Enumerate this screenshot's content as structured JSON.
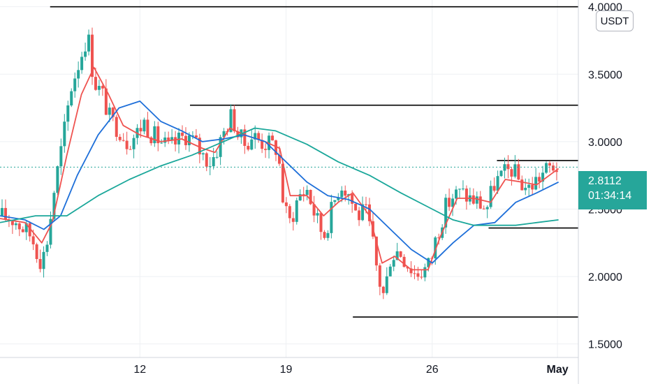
{
  "unit_label": "USDT",
  "current": {
    "price": "2.8112",
    "countdown": "01:34:14"
  },
  "colors": {
    "up": "#26a69a",
    "down": "#ef5350",
    "ma_fast": "#ef5350",
    "ma_mid": "#1e6fd9",
    "ma_slow": "#1aa79a",
    "grid": "#eef0f3",
    "level": "#000000"
  },
  "chart_data": {
    "type": "candlestick",
    "title": "",
    "ylim": [
      1.4,
      4.05
    ],
    "y_ticks": [
      "4.0000",
      "3.5000",
      "3.0000",
      "2.5000",
      "2.0000",
      "1.5000"
    ],
    "x_ticks": [
      {
        "label": "12",
        "day": 12,
        "bold": false
      },
      {
        "label": "19",
        "day": 19,
        "bold": false
      },
      {
        "label": "26",
        "day": 26,
        "bold": false
      },
      {
        "label": "May",
        "day": 32,
        "bold": true
      }
    ],
    "xlim_days": [
      5.3,
      33.0
    ],
    "horizontal_levels": [
      {
        "price": 4.0,
        "from_day": 7.7,
        "to_day": 33.0
      },
      {
        "price": 3.27,
        "from_day": 14.4,
        "to_day": 33.0
      },
      {
        "price": 2.86,
        "from_day": 29.1,
        "to_day": 33.0
      },
      {
        "price": 2.36,
        "from_day": 28.7,
        "to_day": 33.0
      },
      {
        "price": 1.7,
        "from_day": 22.2,
        "to_day": 33.0
      }
    ],
    "close_path": [
      [
        5.3,
        2.45
      ],
      [
        6.0,
        2.42
      ],
      [
        6.8,
        2.3
      ],
      [
        7.3,
        2.1
      ],
      [
        7.6,
        2.3
      ],
      [
        7.9,
        2.65
      ],
      [
        8.3,
        3.0
      ],
      [
        8.7,
        3.4
      ],
      [
        9.1,
        3.6
      ],
      [
        9.5,
        3.8
      ],
      [
        9.8,
        3.45
      ],
      [
        10.2,
        3.35
      ],
      [
        10.6,
        3.15
      ],
      [
        11.0,
        3.1
      ],
      [
        11.4,
        3.0
      ],
      [
        11.8,
        3.05
      ],
      [
        12.2,
        3.15
      ],
      [
        12.6,
        3.05
      ],
      [
        13.0,
        3.0
      ],
      [
        13.4,
        2.95
      ],
      [
        13.8,
        3.0
      ],
      [
        14.2,
        3.05
      ],
      [
        14.6,
        3.0
      ],
      [
        15.0,
        2.9
      ],
      [
        15.4,
        2.85
      ],
      [
        15.8,
        2.98
      ],
      [
        16.1,
        3.1
      ],
      [
        16.4,
        3.2
      ],
      [
        16.7,
        3.05
      ],
      [
        17.0,
        2.98
      ],
      [
        17.4,
        3.05
      ],
      [
        17.8,
        3.0
      ],
      [
        18.2,
        2.98
      ],
      [
        18.6,
        2.95
      ],
      [
        18.9,
        2.5
      ],
      [
        19.2,
        2.4
      ],
      [
        19.6,
        2.6
      ],
      [
        20.0,
        2.65
      ],
      [
        20.4,
        2.45
      ],
      [
        20.8,
        2.3
      ],
      [
        21.2,
        2.5
      ],
      [
        21.6,
        2.7
      ],
      [
        22.0,
        2.62
      ],
      [
        22.4,
        2.45
      ],
      [
        22.8,
        2.48
      ],
      [
        23.1,
        2.3
      ],
      [
        23.4,
        2.0
      ],
      [
        23.7,
        1.85
      ],
      [
        24.0,
        2.15
      ],
      [
        24.4,
        2.2
      ],
      [
        24.8,
        2.1
      ],
      [
        25.2,
        2.02
      ],
      [
        25.6,
        2.05
      ],
      [
        25.9,
        2.1
      ],
      [
        26.2,
        2.3
      ],
      [
        26.6,
        2.5
      ],
      [
        27.0,
        2.6
      ],
      [
        27.4,
        2.62
      ],
      [
        27.8,
        2.58
      ],
      [
        28.2,
        2.55
      ],
      [
        28.6,
        2.5
      ],
      [
        29.0,
        2.7
      ],
      [
        29.4,
        2.75
      ],
      [
        29.8,
        2.8
      ],
      [
        30.2,
        2.7
      ],
      [
        30.6,
        2.65
      ],
      [
        31.0,
        2.72
      ],
      [
        31.4,
        2.78
      ],
      [
        31.8,
        2.82
      ],
      [
        32.05,
        2.81
      ]
    ],
    "moving_averages": [
      {
        "key": "ma_fast",
        "points": [
          [
            5.3,
            2.43
          ],
          [
            6.5,
            2.4
          ],
          [
            7.3,
            2.25
          ],
          [
            7.8,
            2.4
          ],
          [
            8.5,
            2.9
          ],
          [
            9.2,
            3.35
          ],
          [
            9.8,
            3.55
          ],
          [
            10.5,
            3.35
          ],
          [
            11.2,
            3.12
          ],
          [
            12.0,
            3.05
          ],
          [
            13.0,
            3.0
          ],
          [
            14.0,
            3.02
          ],
          [
            15.0,
            2.95
          ],
          [
            15.6,
            2.92
          ],
          [
            16.3,
            3.1
          ],
          [
            17.0,
            3.05
          ],
          [
            18.0,
            3.0
          ],
          [
            18.7,
            2.95
          ],
          [
            19.2,
            2.6
          ],
          [
            20.0,
            2.6
          ],
          [
            20.8,
            2.45
          ],
          [
            21.5,
            2.55
          ],
          [
            22.2,
            2.62
          ],
          [
            23.0,
            2.45
          ],
          [
            23.6,
            2.1
          ],
          [
            24.2,
            2.15
          ],
          [
            25.0,
            2.05
          ],
          [
            25.8,
            2.05
          ],
          [
            26.4,
            2.3
          ],
          [
            27.2,
            2.58
          ],
          [
            28.0,
            2.58
          ],
          [
            28.8,
            2.55
          ],
          [
            29.5,
            2.72
          ],
          [
            30.3,
            2.7
          ],
          [
            31.0,
            2.68
          ],
          [
            31.7,
            2.76
          ],
          [
            32.05,
            2.8
          ]
        ]
      },
      {
        "key": "ma_mid",
        "points": [
          [
            5.3,
            2.45
          ],
          [
            6.5,
            2.42
          ],
          [
            7.4,
            2.35
          ],
          [
            8.2,
            2.45
          ],
          [
            9.0,
            2.75
          ],
          [
            10.0,
            3.05
          ],
          [
            11.0,
            3.25
          ],
          [
            12.0,
            3.3
          ],
          [
            13.0,
            3.15
          ],
          [
            14.0,
            3.08
          ],
          [
            15.0,
            3.0
          ],
          [
            16.0,
            3.02
          ],
          [
            17.0,
            3.05
          ],
          [
            18.0,
            3.0
          ],
          [
            19.0,
            2.85
          ],
          [
            20.0,
            2.7
          ],
          [
            21.0,
            2.6
          ],
          [
            22.0,
            2.57
          ],
          [
            23.0,
            2.5
          ],
          [
            24.0,
            2.35
          ],
          [
            25.0,
            2.2
          ],
          [
            26.0,
            2.1
          ],
          [
            27.0,
            2.25
          ],
          [
            28.0,
            2.38
          ],
          [
            29.0,
            2.4
          ],
          [
            30.0,
            2.55
          ],
          [
            31.0,
            2.62
          ],
          [
            32.05,
            2.7
          ]
        ]
      },
      {
        "key": "ma_slow",
        "points": [
          [
            5.3,
            2.4
          ],
          [
            7.0,
            2.45
          ],
          [
            8.5,
            2.45
          ],
          [
            10.0,
            2.6
          ],
          [
            11.5,
            2.72
          ],
          [
            13.0,
            2.82
          ],
          [
            14.5,
            2.9
          ],
          [
            16.0,
            3.0
          ],
          [
            17.5,
            3.1
          ],
          [
            18.5,
            3.08
          ],
          [
            20.0,
            2.98
          ],
          [
            21.5,
            2.85
          ],
          [
            23.0,
            2.75
          ],
          [
            24.5,
            2.62
          ],
          [
            26.0,
            2.5
          ],
          [
            27.0,
            2.42
          ],
          [
            28.0,
            2.38
          ],
          [
            29.0,
            2.38
          ],
          [
            30.0,
            2.38
          ],
          [
            31.0,
            2.4
          ],
          [
            32.05,
            2.42
          ]
        ]
      }
    ]
  }
}
